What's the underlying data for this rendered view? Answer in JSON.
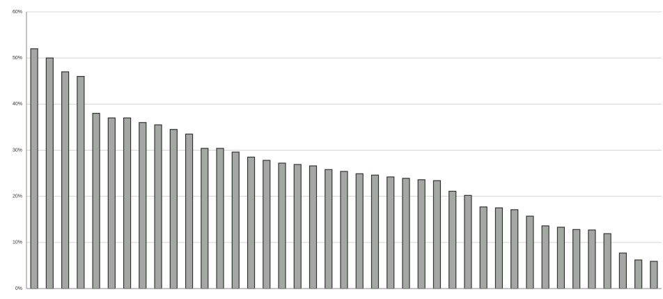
{
  "chart_data": {
    "type": "bar",
    "categories": [
      null,
      null,
      null,
      null,
      null,
      null,
      null,
      null,
      null,
      null,
      null,
      null,
      null,
      null,
      null,
      null,
      null,
      null,
      null,
      null,
      null,
      null,
      null,
      null,
      null,
      null,
      null,
      null,
      null,
      null,
      null,
      null,
      null,
      null,
      null,
      null,
      null,
      null,
      null,
      null,
      null
    ],
    "values": [
      52,
      50,
      47,
      46,
      38,
      37,
      37,
      36,
      35.5,
      34.5,
      33.5,
      30.4,
      30.4,
      29.6,
      28.5,
      27.8,
      27.2,
      26.9,
      26.6,
      25.8,
      25.4,
      24.9,
      24.6,
      24.2,
      23.9,
      23.6,
      23.4,
      21.1,
      20.2,
      17.7,
      17.5,
      17.1,
      15.7,
      13.6,
      13.3,
      12.8,
      12.7,
      11.9,
      7.7,
      6.2,
      5.9
    ],
    "color": "#a3a8a3",
    "ylim": [
      0,
      60
    ],
    "yticks": [
      {
        "value": 0,
        "label": "0%"
      },
      {
        "value": 10,
        "label": "10%"
      },
      {
        "value": 20,
        "label": "20%"
      },
      {
        "value": 30,
        "label": "30%"
      },
      {
        "value": 40,
        "label": "40%"
      },
      {
        "value": 50,
        "label": "50%"
      },
      {
        "value": 60,
        "label": "60%"
      }
    ],
    "grid": true
  }
}
